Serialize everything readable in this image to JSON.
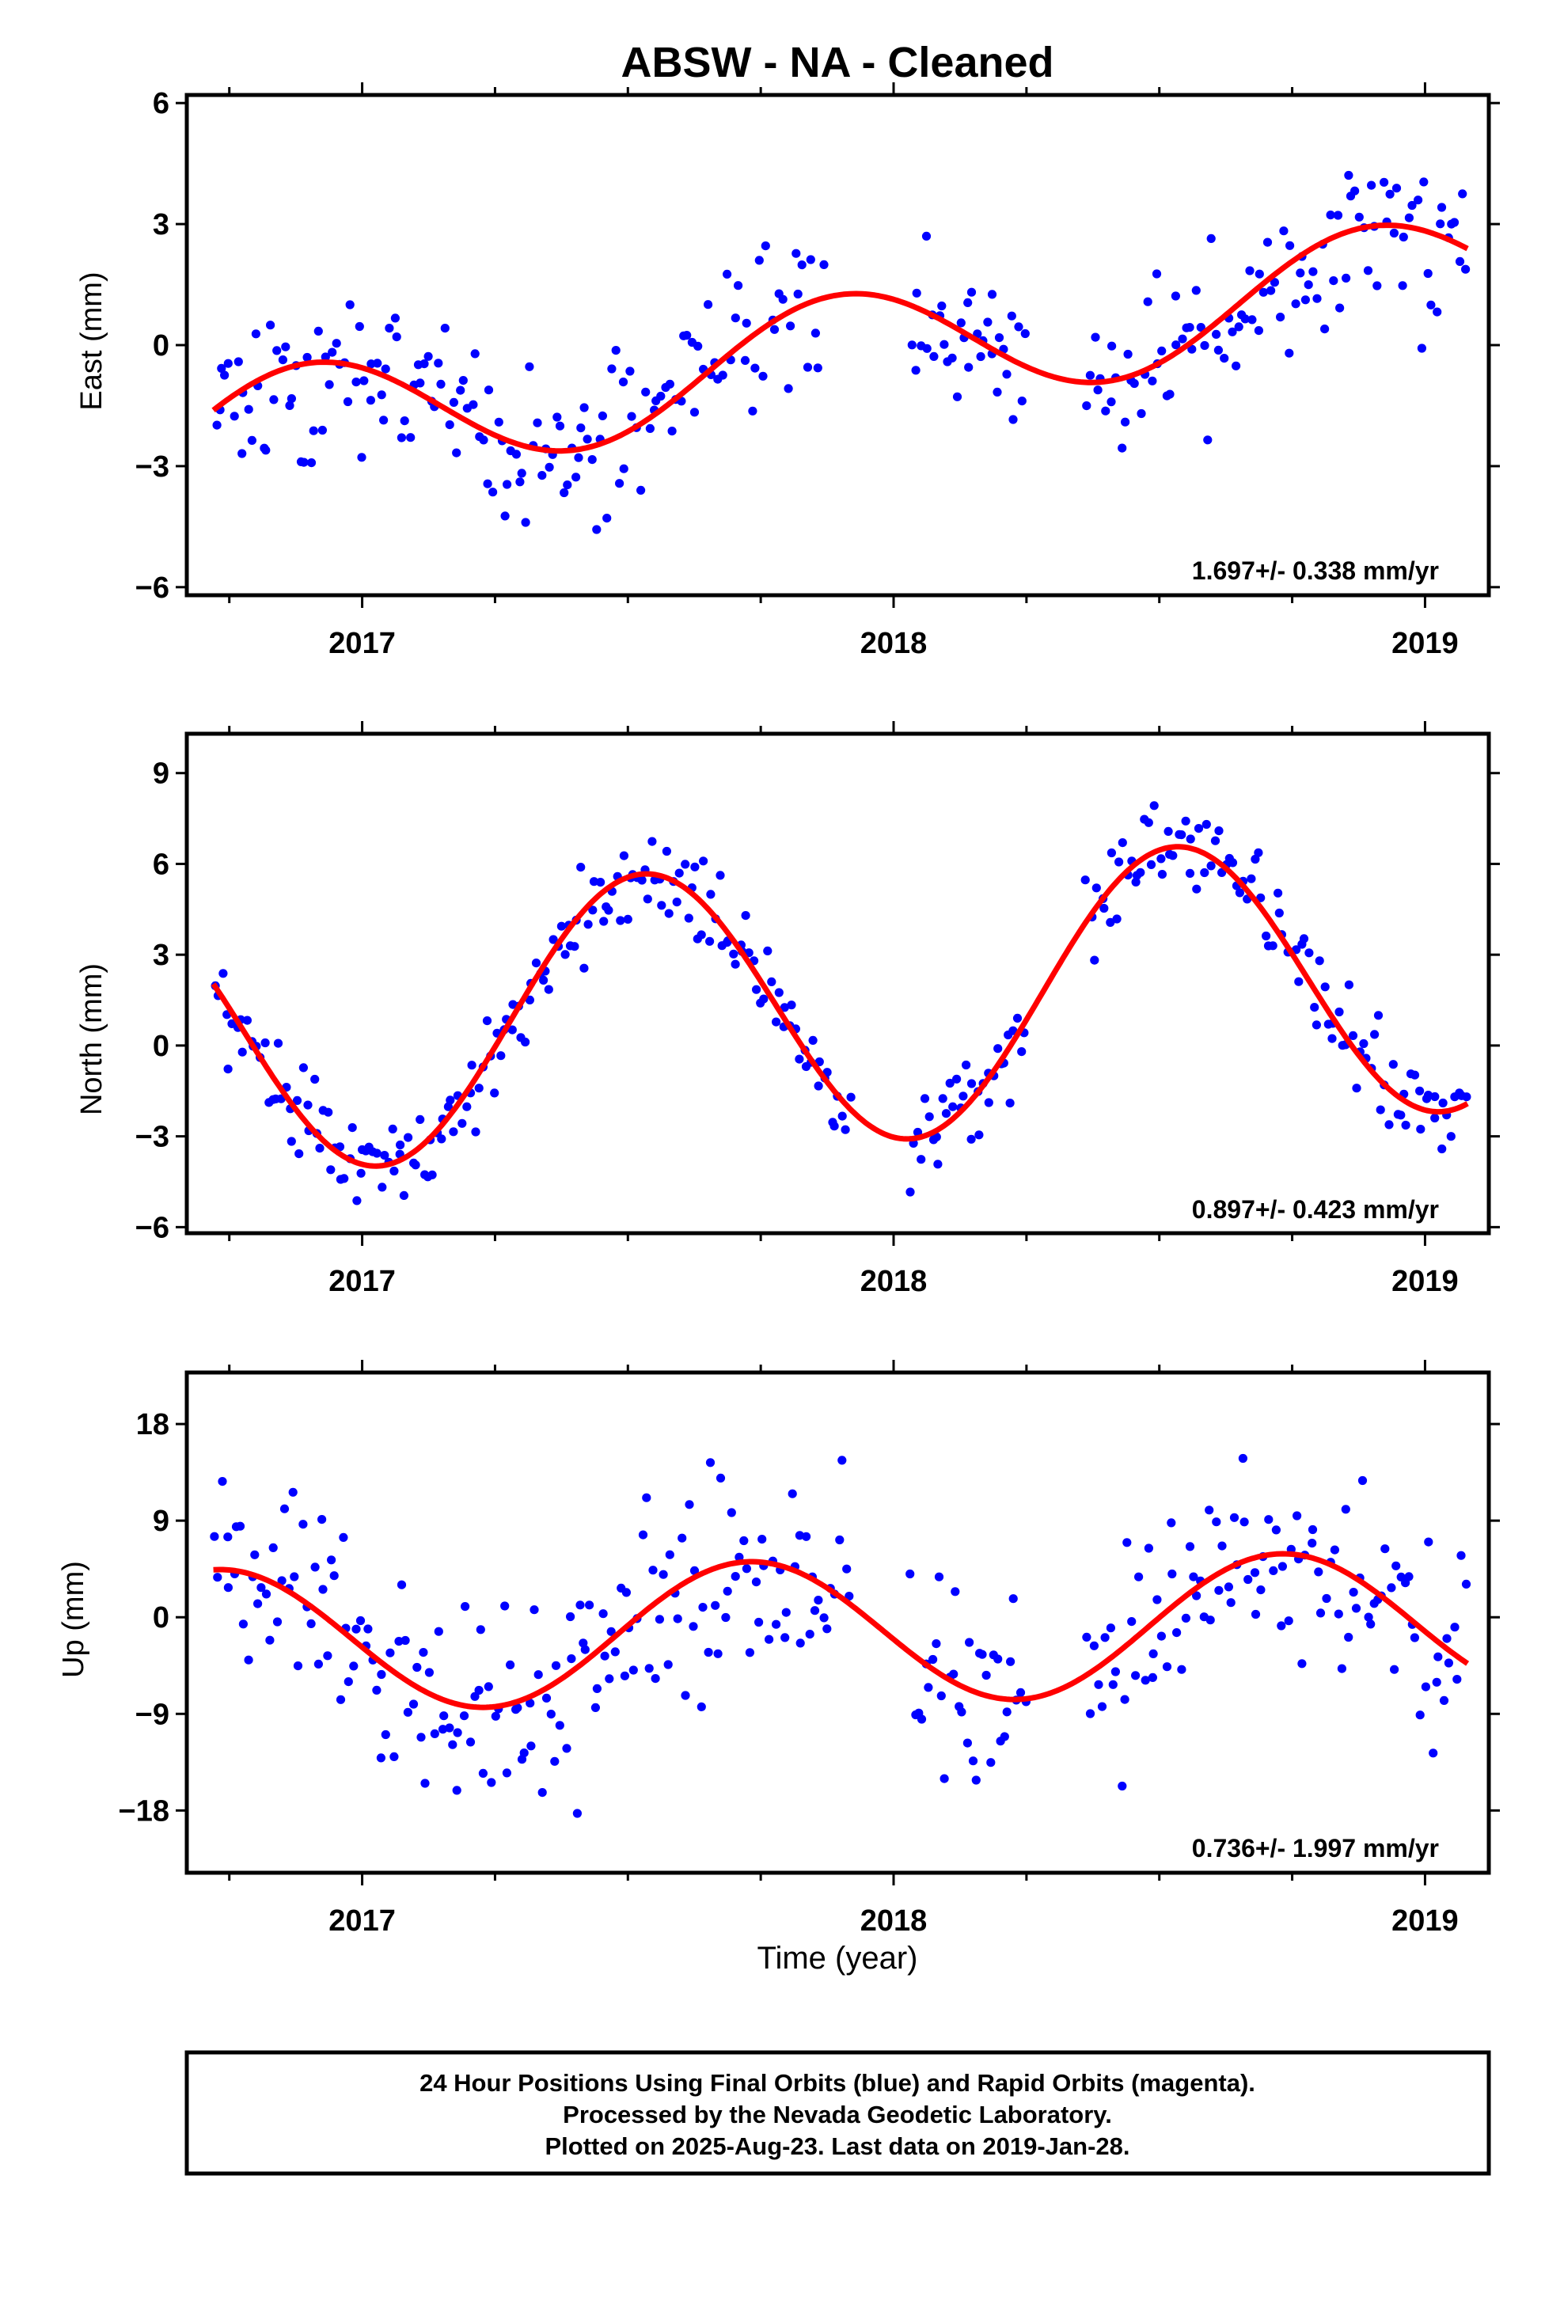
{
  "title": "ABSW  - NA - Cleaned",
  "colors": {
    "points": "#0000ff",
    "fit": "#ff0000",
    "frame": "#000000",
    "background": "#ffffff"
  },
  "chart_data": [
    {
      "type": "scatter",
      "ylabel": "East (mm)",
      "xlim": [
        2016.67,
        2019.12
      ],
      "ylim": [
        -6.2,
        6.2
      ],
      "yticks": [
        -6,
        -3,
        0,
        3,
        6
      ],
      "xticks": [
        2017,
        2018,
        2019
      ],
      "rate_label": "1.697+/- 0.338 mm/yr",
      "fit": {
        "mean": -0.25,
        "rate": 1.697,
        "amplitude": 1.5,
        "phase_peak": 2017.9,
        "t0": 2017.9
      },
      "noise": 1.0,
      "series": [
        {
          "name": "Final Orbits",
          "color": "#0000ff",
          "segments": [
            [
              2016.72,
              2017.52,
              2.8
            ],
            [
              2017.52,
              2017.87,
              2.6
            ],
            [
              2018.03,
              2018.25,
              3.0
            ],
            [
              2018.36,
              2019.08,
              2.7
            ]
          ]
        }
      ]
    },
    {
      "type": "scatter",
      "ylabel": "North (mm)",
      "xlim": [
        2016.67,
        2019.12
      ],
      "ylim": [
        -6.2,
        10.3
      ],
      "yticks": [
        -6,
        -3,
        0,
        3,
        6,
        9
      ],
      "xticks": [
        2017,
        2018,
        2019
      ],
      "rate_label": "0.897+/- 0.423 mm/yr",
      "fit": {
        "mean": 1.4,
        "rate": 0.897,
        "amplitude": 4.6,
        "phase_peak": 2017.53,
        "t0": 2017.9
      },
      "noise": 0.75,
      "series": [
        {
          "name": "Final Orbits",
          "color": "#0000ff",
          "segments": [
            [
              2016.72,
              2017.92,
              2.9
            ],
            [
              2018.03,
              2018.25,
              3.0
            ],
            [
              2018.36,
              2019.08,
              2.8
            ]
          ]
        }
      ]
    },
    {
      "type": "scatter",
      "ylabel": "Up (mm)",
      "xlim": [
        2016.67,
        2019.12
      ],
      "ylim": [
        -23.8,
        22.8
      ],
      "yticks": [
        -18,
        -9,
        0,
        9,
        18
      ],
      "xticks": [
        2017,
        2018,
        2019
      ],
      "rate_label": "0.736+/- 1.997 mm/yr",
      "fit": {
        "mean": -1.3,
        "rate": 0.736,
        "amplitude": 6.6,
        "phase_peak": 2017.73,
        "t0": 2017.9
      },
      "noise": 4.5,
      "series": [
        {
          "name": "Final Orbits",
          "color": "#0000ff",
          "segments": [
            [
              2016.72,
              2017.92,
              2.8
            ],
            [
              2018.03,
              2018.25,
              3.0
            ],
            [
              2018.36,
              2019.08,
              2.7
            ]
          ]
        }
      ]
    }
  ],
  "xlabel": "Time (year)",
  "footer": {
    "line1": "24 Hour Positions Using Final Orbits (blue) and Rapid Orbits (magenta).",
    "line2": "Processed by the Nevada Geodetic Laboratory.",
    "line3": "Plotted on 2025-Aug-23. Last data on 2019-Jan-28."
  }
}
